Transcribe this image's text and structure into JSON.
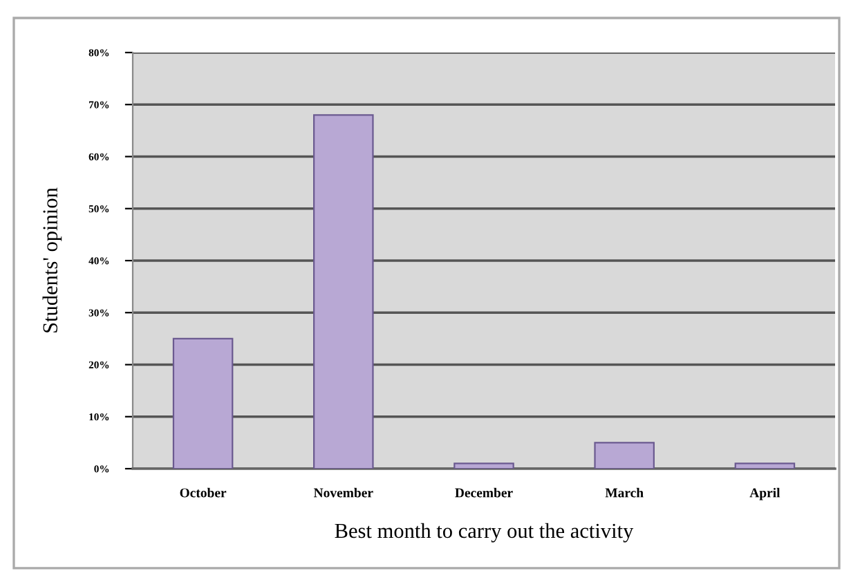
{
  "chart_data": {
    "type": "bar",
    "xlabel": "Best month to carry out the activity",
    "ylabel": "Students' opinion",
    "categories": [
      "October",
      "November",
      "December",
      "March",
      "April"
    ],
    "values": [
      25,
      68,
      1,
      5,
      1
    ],
    "color": "#b8a8d4",
    "ylim": [
      0,
      80
    ],
    "yticks": [
      {
        "value": 0,
        "label": "0%"
      },
      {
        "value": 10,
        "label": "10%"
      },
      {
        "value": 20,
        "label": "20%"
      },
      {
        "value": 30,
        "label": "30%"
      },
      {
        "value": 40,
        "label": "40%"
      },
      {
        "value": 50,
        "label": "50%"
      },
      {
        "value": 60,
        "label": "60%"
      },
      {
        "value": 70,
        "label": "70%"
      },
      {
        "value": 80,
        "label": "80%"
      }
    ],
    "grid": "y",
    "legend": false
  }
}
